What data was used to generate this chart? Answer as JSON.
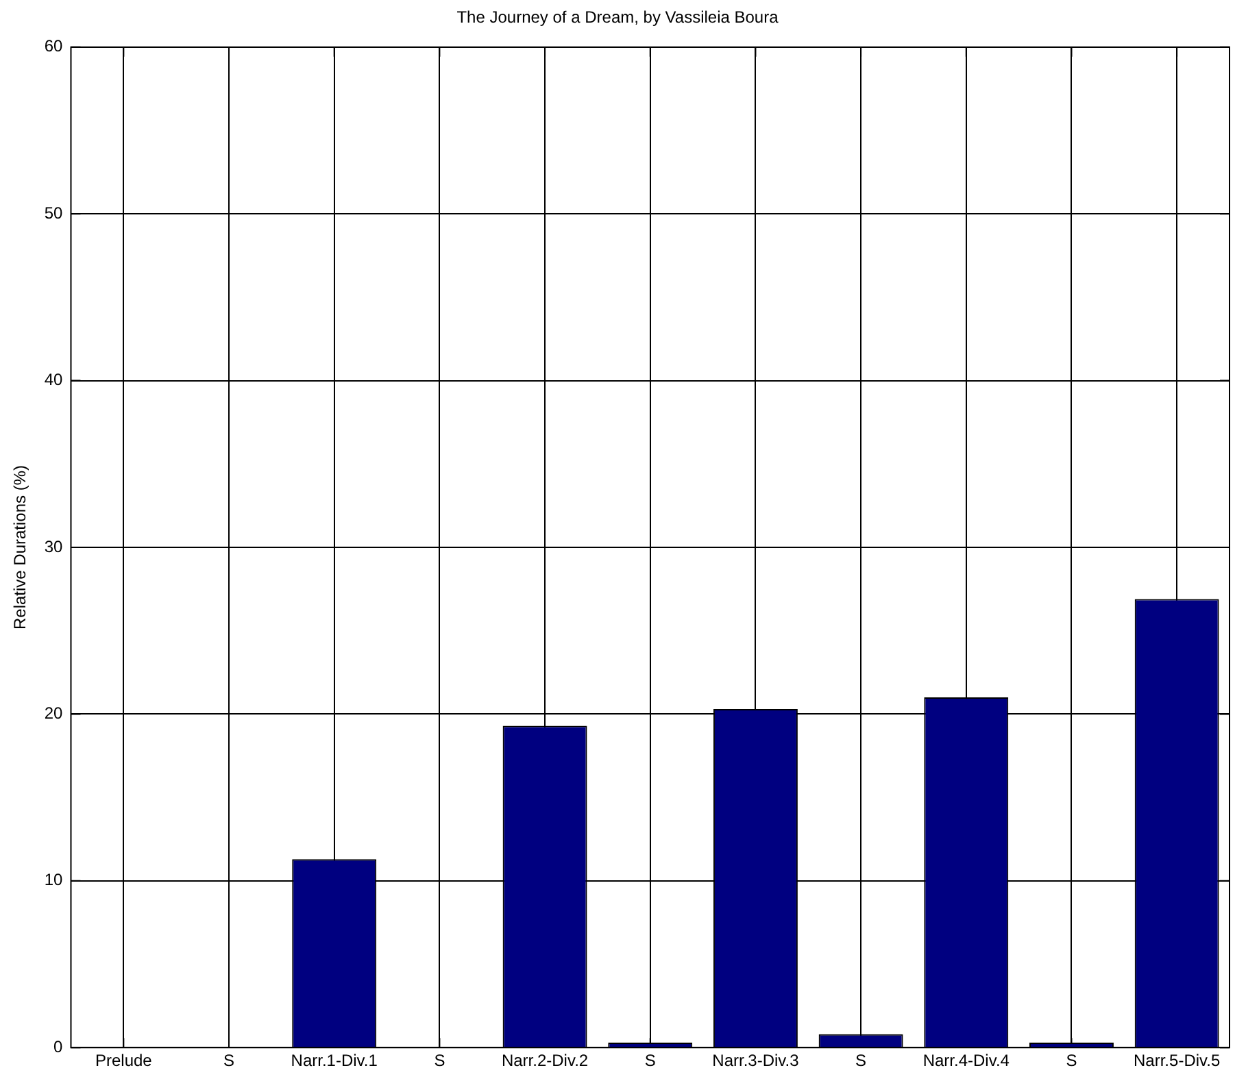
{
  "chart_data": {
    "type": "bar",
    "title": "The Journey of a Dream, by Vassileia Boura",
    "ylabel": "Relative Durations (%)",
    "categories": [
      "Prelude",
      "S",
      "Narr.1-Div.1",
      "S",
      "Narr.2-Div.2",
      "S",
      "Narr.3-Div.3",
      "S",
      "Narr.4-Div.4",
      "S",
      "Narr.5-Div.5"
    ],
    "values": [
      0,
      0,
      11.3,
      0,
      19.3,
      0.3,
      20.3,
      0.8,
      21.0,
      0.3,
      26.9
    ],
    "color": "#000080",
    "ylim": [
      0,
      60
    ],
    "yticks": [
      0,
      10,
      20,
      30,
      40,
      50,
      60
    ],
    "grid": true,
    "legend": false
  }
}
